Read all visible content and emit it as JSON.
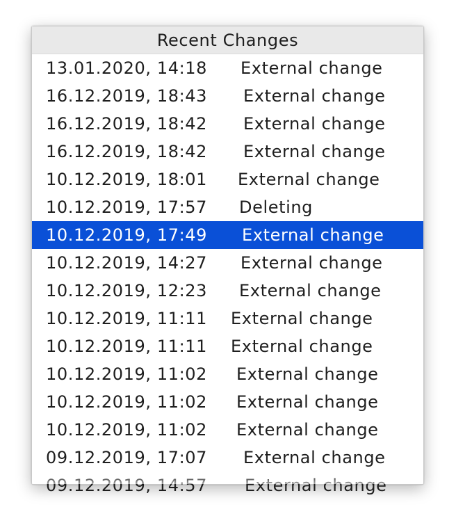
{
  "popup": {
    "title": "Recent Changes",
    "rows": [
      {
        "date": "13.01.2020, 14:18",
        "action": "External change",
        "selected": false
      },
      {
        "date": "16.12.2019, 18:43",
        "action": "External change",
        "selected": false
      },
      {
        "date": "16.12.2019, 18:42",
        "action": "External change",
        "selected": false
      },
      {
        "date": "16.12.2019, 18:42",
        "action": "External change",
        "selected": false
      },
      {
        "date": "10.12.2019, 18:01",
        "action": "External change",
        "selected": false
      },
      {
        "date": "10.12.2019, 17:57",
        "action": "Deleting",
        "selected": false
      },
      {
        "date": "10.12.2019, 17:49",
        "action": "External change",
        "selected": true
      },
      {
        "date": "10.12.2019, 14:27",
        "action": "External change",
        "selected": false
      },
      {
        "date": "10.12.2019, 12:23",
        "action": "External change",
        "selected": false
      },
      {
        "date": "10.12.2019, 11:11",
        "action": "External change",
        "selected": false
      },
      {
        "date": "10.12.2019, 11:11",
        "action": "External change",
        "selected": false
      },
      {
        "date": "10.12.2019, 11:02",
        "action": "External change",
        "selected": false
      },
      {
        "date": "10.12.2019, 11:02",
        "action": "External change",
        "selected": false
      },
      {
        "date": "10.12.2019, 11:02",
        "action": "External change",
        "selected": false
      },
      {
        "date": "09.12.2019, 17:07",
        "action": "External change",
        "selected": false
      },
      {
        "date": "09.12.2019, 14:57",
        "action": "External change",
        "selected": false
      }
    ],
    "colors": {
      "selection": "#0a50d7",
      "header_bg": "#e9e9e9",
      "text": "#1e1e1e"
    }
  }
}
